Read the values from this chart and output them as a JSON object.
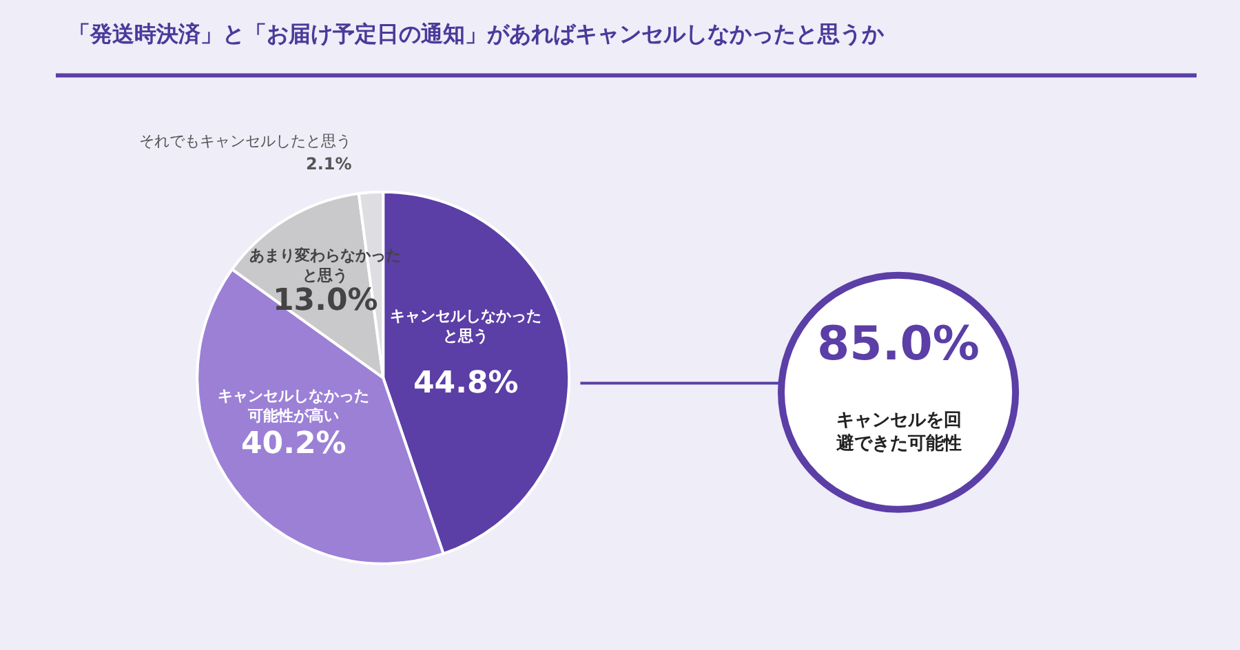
{
  "chart_data": {
    "type": "pie",
    "title": "「発送時決済」と「お届け予定日の通知」があればキャンセルしなかったと思うか",
    "categories": [
      "キャンセルしなかったと思う",
      "キャンセルしなかった可能性が高い",
      "あまり変わらなかったと思う",
      "それでもキャンセルしたと思う"
    ],
    "values": [
      44.8,
      40.2,
      13.0,
      2.1
    ],
    "value_labels": [
      "44.8%",
      "40.2%",
      "13.0%",
      "2.1%"
    ],
    "colors": [
      "#5b3ea6",
      "#9b80d6",
      "#c9c9cb",
      "#dedee2"
    ],
    "annotations": [
      "85.0%",
      "キャンセルを回避できた可能性"
    ],
    "legend": false
  }
}
